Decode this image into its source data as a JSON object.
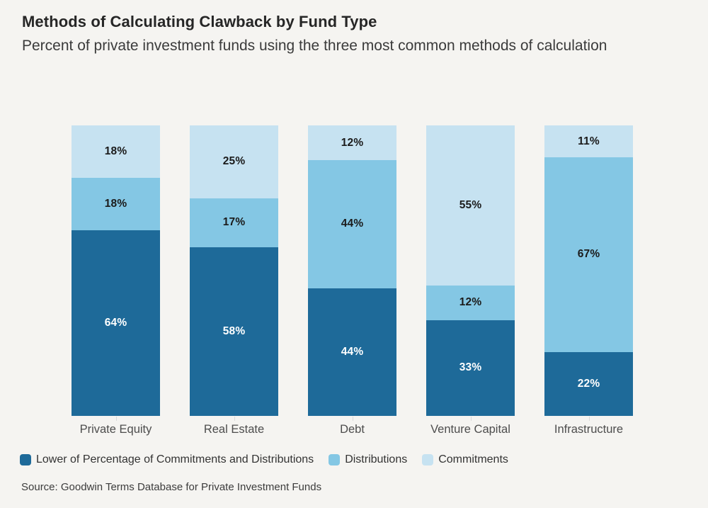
{
  "page": {
    "background": "#f5f4f1"
  },
  "header": {
    "title": "Methods of Calculating Clawback by Fund Type",
    "subtitle": "Percent of private investment funds using the three most common methods of calculation"
  },
  "chart_data": {
    "type": "bar",
    "stacked": true,
    "value_suffix": "%",
    "ylim": [
      0,
      100
    ],
    "grid": false,
    "legend_position": "bottom",
    "categories": [
      "Private Equity",
      "Real Estate",
      "Debt",
      "Venture Capital",
      "Infrastructure"
    ],
    "series": [
      {
        "key": "lower-of-percentage-of-commitments-and-distributions",
        "name": "Lower of Percentage of Commitments and Distributions",
        "color": "#1e6a99",
        "label_color": "#ffffff",
        "values": [
          64,
          58,
          44,
          33,
          22
        ]
      },
      {
        "key": "distributions",
        "name": "Distributions",
        "color": "#84c7e4",
        "label_color": "#1b1b1b",
        "values": [
          18,
          17,
          44,
          12,
          67
        ]
      },
      {
        "key": "commitments",
        "name": "Commitments",
        "color": "#c6e2f1",
        "label_color": "#1b1b1b",
        "values": [
          18,
          25,
          12,
          55,
          11
        ]
      }
    ]
  },
  "source": "Source: Goodwin Terms Database for Private Investment Funds"
}
